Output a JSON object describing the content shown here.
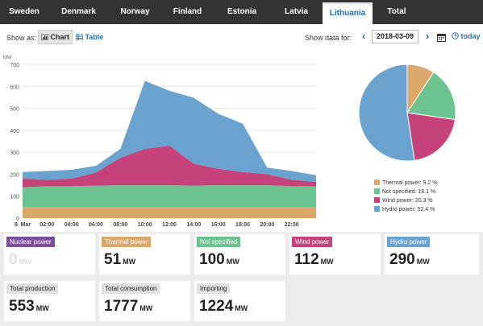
{
  "tabs": [
    {
      "label": "Sweden"
    },
    {
      "label": "Denmark"
    },
    {
      "label": "Norway"
    },
    {
      "label": "Finland"
    },
    {
      "label": "Estonia"
    },
    {
      "label": "Latvia"
    },
    {
      "label": "Lithuania"
    },
    {
      "label": "Total"
    }
  ],
  "controls": {
    "show_as_label": "Show as:",
    "chart_label": "Chart",
    "table_label": "Table",
    "show_data_for_label": "Show data for:",
    "date": "2018-03-09",
    "today_label": "today"
  },
  "area_chart": {
    "unit_label": "MW",
    "y_ticks": [
      "700",
      "600",
      "500",
      "400",
      "300",
      "200",
      "100",
      "0"
    ],
    "x_ticks": [
      "9. Mar",
      "02:00",
      "04:00",
      "06:00",
      "08:00",
      "10:00",
      "12:00",
      "14:00",
      "16:00",
      "18:00",
      "20:00",
      "22:00"
    ]
  },
  "chart_data": {
    "type": "area",
    "x": [
      "00:00",
      "02:00",
      "04:00",
      "06:00",
      "08:00",
      "10:00",
      "12:00",
      "14:00",
      "16:00",
      "18:00",
      "20:00",
      "22:00",
      "24:00"
    ],
    "ylim": [
      0,
      700
    ],
    "series": [
      {
        "name": "Nuclear power",
        "values": [
          0,
          0,
          0,
          0,
          0,
          0,
          0,
          0,
          0,
          0,
          0,
          0,
          0
        ]
      },
      {
        "name": "Thermal power",
        "values": [
          50,
          50,
          50,
          50,
          50,
          50,
          50,
          50,
          50,
          50,
          50,
          50,
          50
        ]
      },
      {
        "name": "Not specified",
        "values": [
          90,
          95,
          95,
          98,
          100,
          100,
          100,
          98,
          100,
          100,
          100,
          95,
          95
        ]
      },
      {
        "name": "Wind power",
        "values": [
          40,
          30,
          35,
          60,
          125,
          165,
          180,
          100,
          75,
          60,
          50,
          30,
          20
        ]
      },
      {
        "name": "Hydro power",
        "values": [
          30,
          40,
          40,
          30,
          40,
          310,
          250,
          300,
          250,
          220,
          30,
          40,
          30
        ]
      }
    ]
  },
  "pie_chart": {
    "type": "pie",
    "slices": [
      {
        "label": "Thermal power: 9.2 %",
        "value": 9.2,
        "color": "#d9a86a"
      },
      {
        "label": "Not specified: 18.1 %",
        "value": 18.1,
        "color": "#6cc390"
      },
      {
        "label": "Wind power: 20.3 %",
        "value": 20.3,
        "color": "#c5427a"
      },
      {
        "label": "Hydro power: 52.4 %",
        "value": 52.4,
        "color": "#6aa3cf"
      }
    ]
  },
  "cards": {
    "nuclear": {
      "label": "Nuclear power",
      "value": "0",
      "unit": "MW"
    },
    "thermal": {
      "label": "Thermal power",
      "value": "51",
      "unit": "MW"
    },
    "not_specified": {
      "label": "Not specified",
      "value": "100",
      "unit": "MW"
    },
    "wind": {
      "label": "Wind power",
      "value": "112",
      "unit": "MW"
    },
    "hydro": {
      "label": "Hydro power",
      "value": "290",
      "unit": "MW"
    },
    "total_production": {
      "label": "Total production",
      "value": "553",
      "unit": "MW"
    },
    "total_consumption": {
      "label": "Total consumption",
      "value": "1777",
      "unit": "MW"
    },
    "importing": {
      "label": "Importing",
      "value": "1224",
      "unit": "MW"
    }
  },
  "colors": {
    "nuclear": "#7b4f9e",
    "thermal": "#d9a86a",
    "not_specified": "#6cc390",
    "wind": "#c5427a",
    "hydro": "#6aa3cf",
    "total": "#e0e0e0",
    "accent": "#2a6ea6"
  }
}
